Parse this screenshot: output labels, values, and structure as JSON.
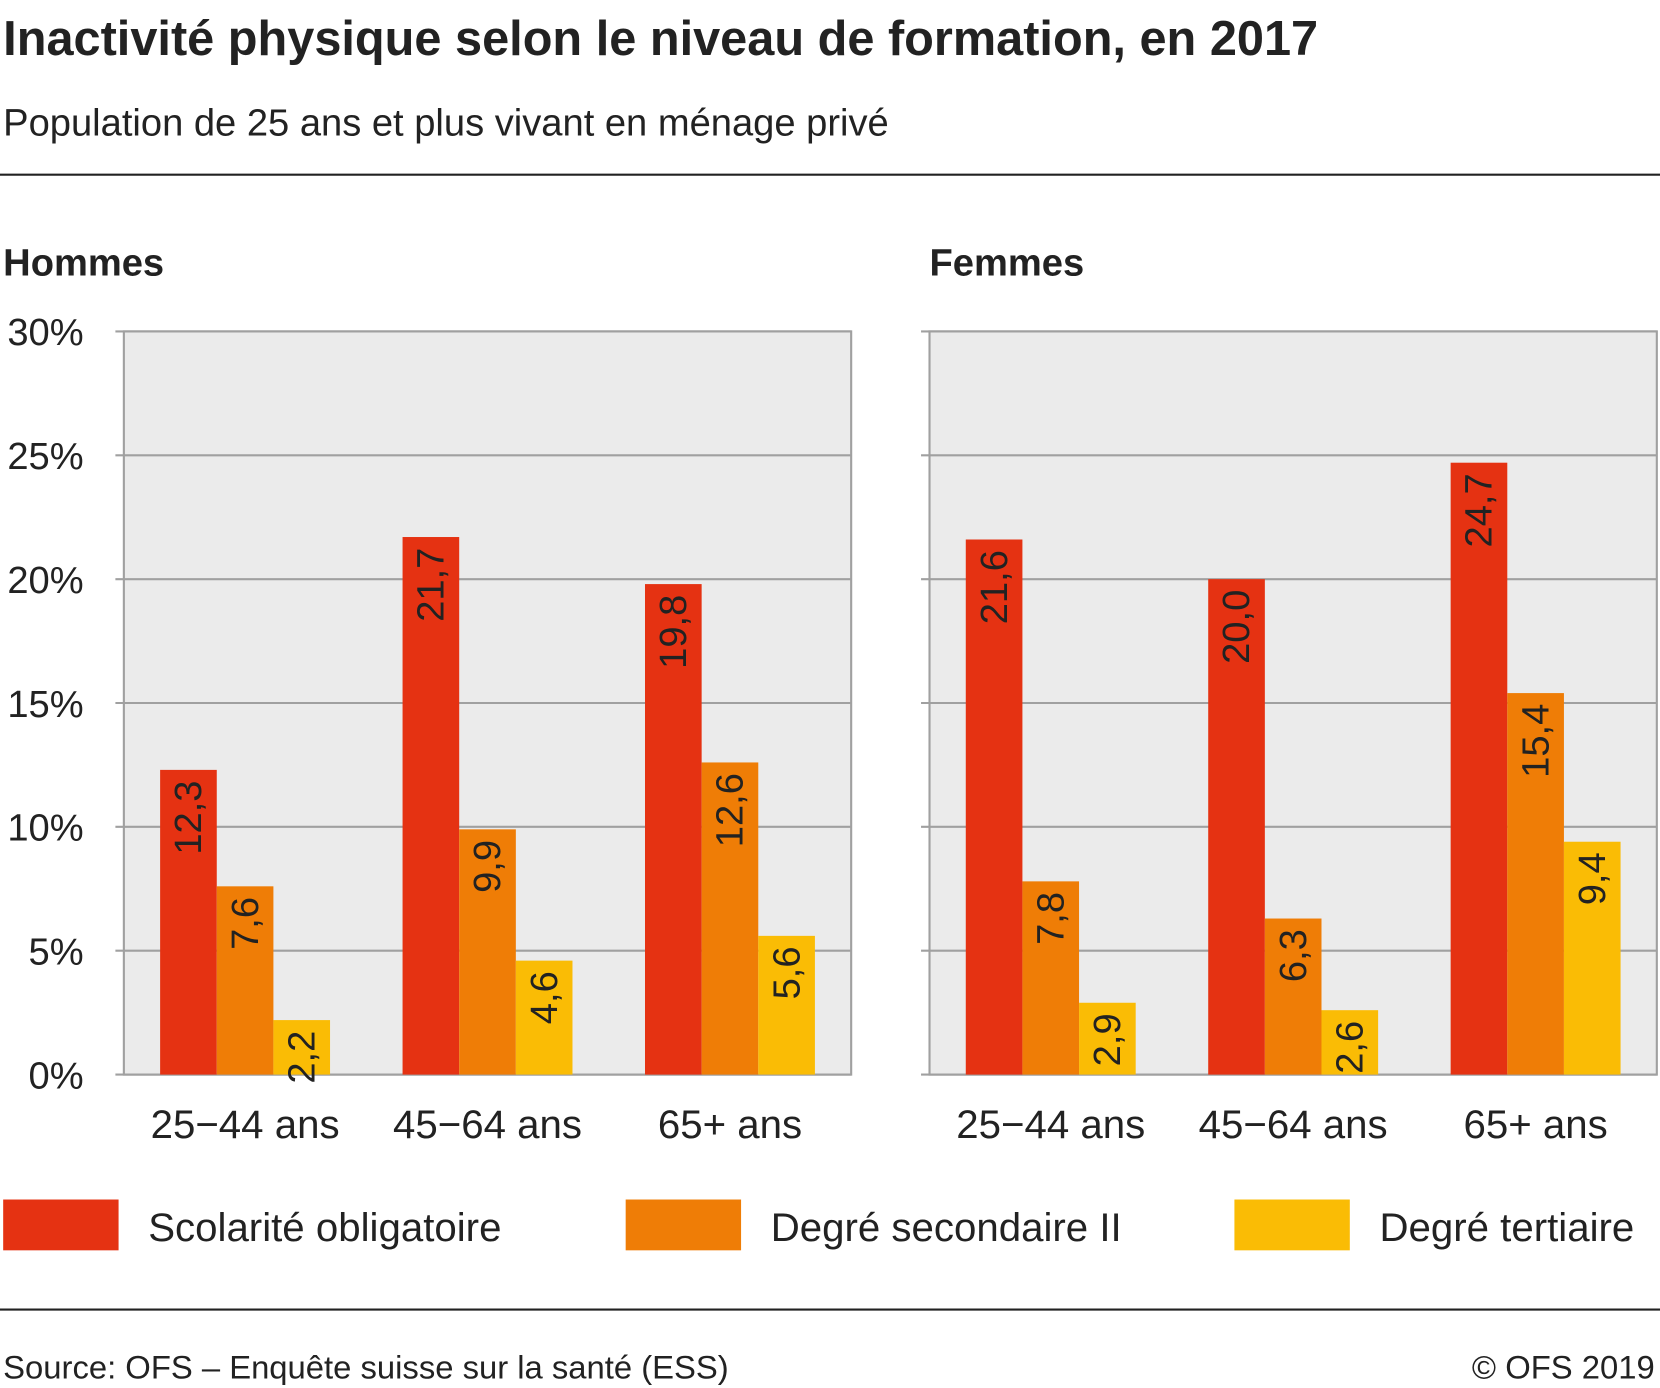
{
  "title": "Inactivité physique selon le niveau de formation, en 2017",
  "subtitle": "Population de 25 ans et plus vivant en ménage privé",
  "source": "Source: OFS – Enquête suisse sur la santé (ESS)",
  "copyright": "© OFS 2019",
  "chart_data": [
    {
      "type": "bar",
      "title": "Hommes",
      "categories": [
        "25−44 ans",
        "45−64 ans",
        "65+ ans"
      ],
      "series": [
        {
          "name": "Scolarité obligatoire",
          "color": "#e53212",
          "values": [
            12.3,
            21.7,
            19.8
          ],
          "value_labels": [
            "12,3",
            "21,7",
            "19,8"
          ]
        },
        {
          "name": "Degré secondaire II",
          "color": "#ef7d06",
          "values": [
            7.6,
            9.9,
            12.6
          ],
          "value_labels": [
            "7,6",
            "9,9",
            "12,6"
          ]
        },
        {
          "name": "Degré tertiaire",
          "color": "#fabc05",
          "values": [
            2.2,
            4.6,
            5.6
          ],
          "value_labels": [
            "2,2",
            "4,6",
            "5,6"
          ]
        }
      ],
      "ylim": [
        0,
        30
      ],
      "yticks": [
        {
          "value": 0,
          "label": "0%"
        },
        {
          "value": 5,
          "label": "5%"
        },
        {
          "value": 10,
          "label": "10%"
        },
        {
          "value": 15,
          "label": "15%"
        },
        {
          "value": 20,
          "label": "20%"
        },
        {
          "value": 25,
          "label": "25%"
        },
        {
          "value": 30,
          "label": "30%"
        }
      ],
      "grid": true
    },
    {
      "type": "bar",
      "title": "Femmes",
      "categories": [
        "25−44 ans",
        "45−64 ans",
        "65+ ans"
      ],
      "series": [
        {
          "values": [
            21.6,
            20.0,
            24.7
          ],
          "value_labels": [
            "21,6",
            "20,0",
            "24,7"
          ]
        },
        {
          "values": [
            7.8,
            6.3,
            15.4
          ],
          "value_labels": [
            "7,8",
            "6,3",
            "15,4"
          ]
        },
        {
          "values": [
            2.9,
            2.6,
            9.4
          ],
          "value_labels": [
            "2,9",
            "2,6",
            "9,4"
          ]
        }
      ],
      "ylim": [
        0,
        30
      ],
      "grid": true
    }
  ]
}
